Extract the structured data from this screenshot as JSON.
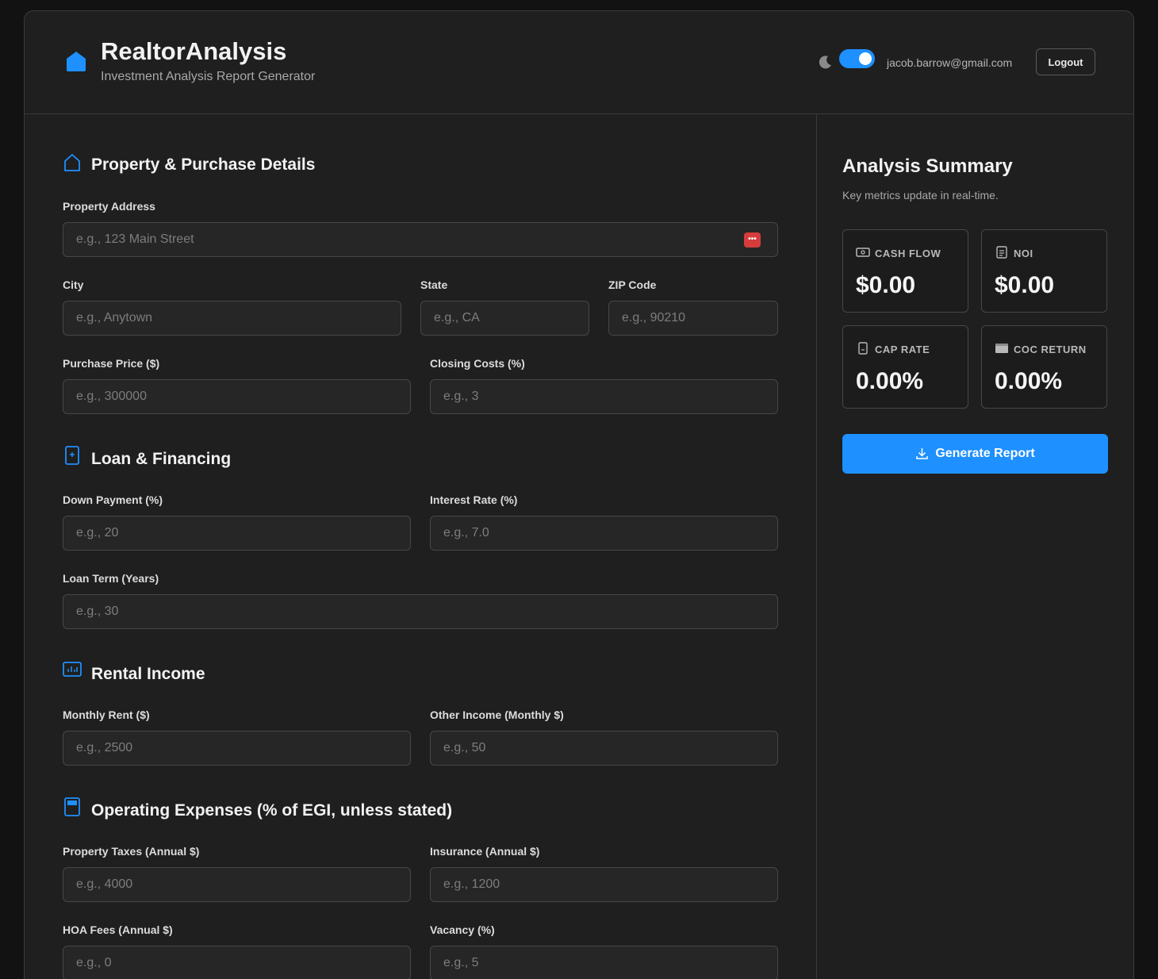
{
  "header": {
    "brand_title": "RealtorAnalysis",
    "brand_subtitle": "Investment Analysis Report Generator",
    "user_email": "jacob.barrow@gmail.com",
    "logout_label": "Logout",
    "dark_mode_on": true
  },
  "sections": {
    "property": {
      "title": "Property & Purchase Details",
      "address_label": "Property Address",
      "address_placeholder": "e.g., 123 Main Street",
      "city_label": "City",
      "city_placeholder": "e.g., Anytown",
      "state_label": "State",
      "state_placeholder": "e.g., CA",
      "zip_label": "ZIP Code",
      "zip_placeholder": "e.g., 90210",
      "price_label": "Purchase Price ($)",
      "price_placeholder": "e.g., 300000",
      "closing_label": "Closing Costs (%)",
      "closing_placeholder": "e.g., 3"
    },
    "loan": {
      "title": "Loan & Financing",
      "down_label": "Down Payment (%)",
      "down_placeholder": "e.g., 20",
      "rate_label": "Interest Rate (%)",
      "rate_placeholder": "e.g., 7.0",
      "term_label": "Loan Term (Years)",
      "term_placeholder": "e.g., 30"
    },
    "rental": {
      "title": "Rental Income",
      "rent_label": "Monthly Rent ($)",
      "rent_placeholder": "e.g., 2500",
      "other_label": "Other Income (Monthly $)",
      "other_placeholder": "e.g., 50"
    },
    "expenses": {
      "title": "Operating Expenses (% of EGI, unless stated)",
      "taxes_label": "Property Taxes (Annual $)",
      "taxes_placeholder": "e.g., 4000",
      "insurance_label": "Insurance (Annual $)",
      "insurance_placeholder": "e.g., 1200",
      "hoa_label": "HOA Fees (Annual $)",
      "hoa_placeholder": "e.g., 0",
      "vacancy_label": "Vacancy (%)",
      "vacancy_placeholder": "e.g., 5"
    }
  },
  "summary": {
    "title": "Analysis Summary",
    "subtitle": "Key metrics update in real-time.",
    "metrics": [
      {
        "label": "CASH FLOW",
        "value": "$0.00",
        "icon": "cash-icon"
      },
      {
        "label": "NOI",
        "value": "$0.00",
        "icon": "clipboard-icon"
      },
      {
        "label": "CAP RATE",
        "value": "0.00%",
        "icon": "document-icon"
      },
      {
        "label": "COC RETURN",
        "value": "0.00%",
        "icon": "calendar-icon"
      }
    ],
    "generate_label": "Generate Report"
  },
  "colors": {
    "accent": "#1e90ff",
    "background": "#1f1f1f",
    "page": "#121212"
  }
}
